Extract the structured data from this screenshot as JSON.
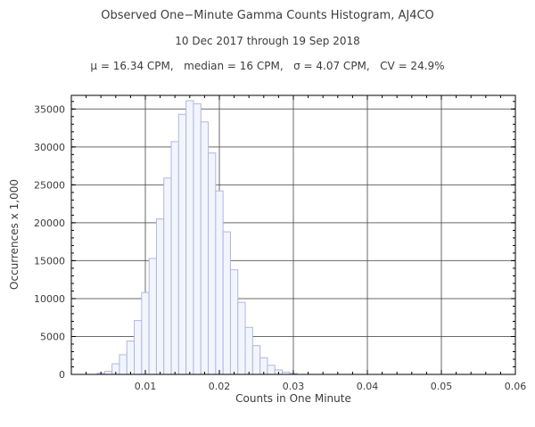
{
  "chart_data": {
    "type": "bar",
    "title": "Observed One−Minute Gamma Counts Histogram, AJ4CO",
    "subtitle": "10 Dec 2017 through 19 Sep 2018",
    "stats_line": "μ = 16.34 CPM,   median = 16 CPM,   σ = 4.07 CPM,   CV = 24.9%",
    "xlabel": "Counts in One Minute",
    "ylabel": "Occurrences x 1,000",
    "xlim": [
      0,
      0.06
    ],
    "ylim": [
      0,
      36800
    ],
    "grid": true,
    "xticks": [
      0.01,
      0.02,
      0.03,
      0.04,
      0.05,
      0.06
    ],
    "xtick_labels": [
      "0.01",
      "0.02",
      "0.03",
      "0.04",
      "0.05",
      "0.06"
    ],
    "yticks": [
      0,
      5000,
      10000,
      15000,
      20000,
      25000,
      30000,
      35000
    ],
    "ytick_labels": [
      "0",
      "5000",
      "10000",
      "15000",
      "20000",
      "25000",
      "30000",
      "35000"
    ],
    "xtick_minor_step": 0.002,
    "ytick_minor_step": 1000,
    "bin_width": 0.001,
    "x": [
      0.004,
      0.005,
      0.006,
      0.007,
      0.008,
      0.009,
      0.01,
      0.011,
      0.012,
      0.013,
      0.014,
      0.015,
      0.016,
      0.017,
      0.018,
      0.019,
      0.02,
      0.021,
      0.022,
      0.023,
      0.024,
      0.025,
      0.026,
      0.027,
      0.028,
      0.029,
      0.03
    ],
    "values": [
      150,
      400,
      1400,
      2600,
      4400,
      7100,
      10800,
      15300,
      20500,
      25900,
      30700,
      34300,
      36100,
      35700,
      33300,
      29200,
      24200,
      18800,
      13800,
      9500,
      6200,
      3800,
      2200,
      1200,
      600,
      300,
      130
    ],
    "colors": {
      "bar_fill": "#f3f5fc",
      "bar_edge": "#aeb7e4",
      "grid": "#4f4f4f",
      "frame": "#000000",
      "text": "#3c3c3c"
    },
    "legend": "none"
  }
}
